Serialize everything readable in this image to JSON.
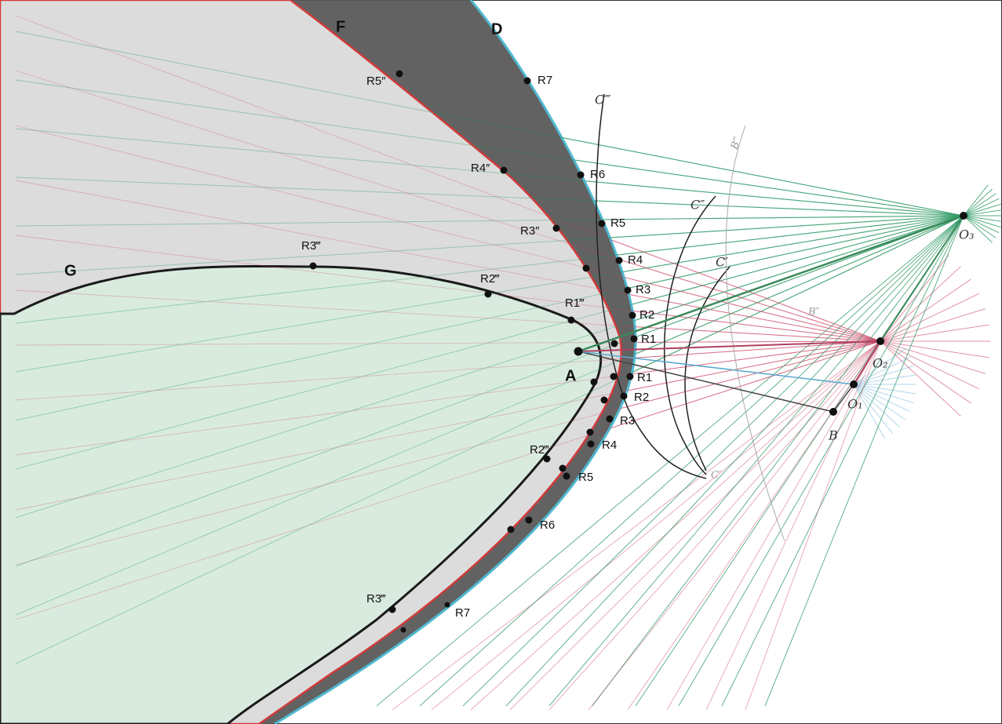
{
  "curves": {
    "outer": "D",
    "inner": "F",
    "edge": "G",
    "vertex": "A"
  },
  "points": [
    "R7",
    "R5″",
    "R6",
    "R4″",
    "R5",
    "R3″",
    "R4",
    "R3‴",
    "R2‴",
    "R3",
    "R2",
    "R1‴",
    "R1",
    "R1",
    "R2",
    "R3",
    "R4",
    "R2‴",
    "R5",
    "R6",
    "R3‴",
    "R7"
  ],
  "arcs": [
    "C‴",
    "C″",
    "C′",
    "C′"
  ],
  "marks": [
    "B‴",
    "B″"
  ],
  "centers": [
    "O₃",
    "O₂",
    "O₁",
    "B"
  ]
}
